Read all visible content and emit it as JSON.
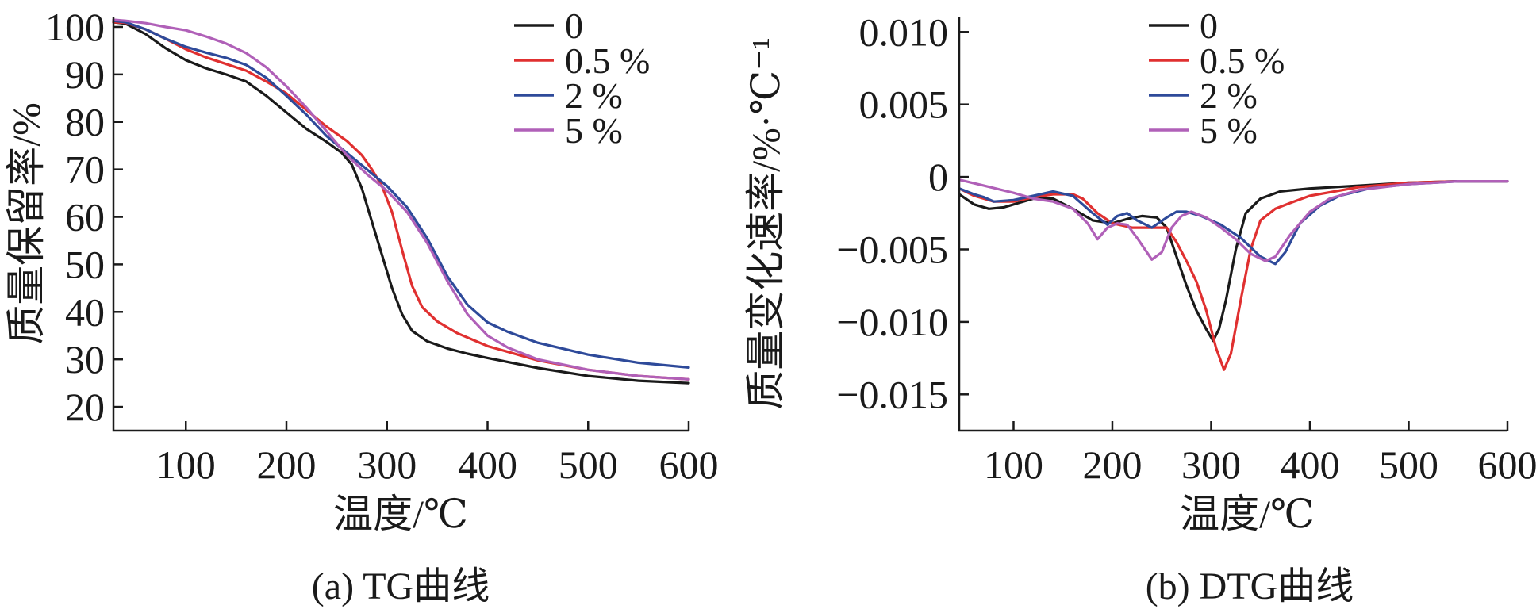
{
  "chart_data": [
    {
      "type": "line",
      "panel": "a",
      "caption": "(a) TG曲线",
      "xlabel": "温度/℃",
      "ylabel": "质量保留率/%",
      "xlim": [
        28,
        600
      ],
      "ylim": [
        15,
        102
      ],
      "xticks": [
        100,
        200,
        300,
        400,
        500,
        600
      ],
      "xtick_labels": [
        "100",
        "200",
        "300",
        "400",
        "500",
        "600"
      ],
      "yticks": [
        20,
        30,
        40,
        50,
        60,
        70,
        80,
        90,
        100
      ],
      "ytick_labels": [
        "20",
        "30",
        "40",
        "50",
        "60",
        "70",
        "80",
        "90",
        "100"
      ],
      "legend": [
        "0",
        "0.5 %",
        "2 %",
        "5 %"
      ],
      "legend_position": "top-right",
      "series": [
        {
          "name": "0",
          "color": "#1a1a1a",
          "points": [
            [
              28,
              101
            ],
            [
              40,
              100.7
            ],
            [
              60,
              98.5
            ],
            [
              80,
              95.5
            ],
            [
              100,
              93
            ],
            [
              120,
              91.3
            ],
            [
              140,
              90
            ],
            [
              160,
              88.5
            ],
            [
              180,
              85.5
            ],
            [
              200,
              82
            ],
            [
              220,
              78.5
            ],
            [
              240,
              75.8
            ],
            [
              255,
              73.5
            ],
            [
              265,
              71
            ],
            [
              275,
              66
            ],
            [
              285,
              59
            ],
            [
              295,
              52
            ],
            [
              305,
              45
            ],
            [
              315,
              39.5
            ],
            [
              325,
              36
            ],
            [
              340,
              33.8
            ],
            [
              360,
              32.3
            ],
            [
              380,
              31.2
            ],
            [
              400,
              30.3
            ],
            [
              450,
              28.2
            ],
            [
              500,
              26.5
            ],
            [
              550,
              25.5
            ],
            [
              600,
              25
            ]
          ]
        },
        {
          "name": "0.5 %",
          "color": "#e03030",
          "points": [
            [
              28,
              101
            ],
            [
              40,
              100.9
            ],
            [
              60,
              99.5
            ],
            [
              80,
              97.5
            ],
            [
              100,
              95.3
            ],
            [
              120,
              93.6
            ],
            [
              140,
              92.2
            ],
            [
              160,
              90.8
            ],
            [
              180,
              88.5
            ],
            [
              200,
              86
            ],
            [
              220,
              82.5
            ],
            [
              240,
              79
            ],
            [
              260,
              76
            ],
            [
              275,
              73
            ],
            [
              285,
              70
            ],
            [
              295,
              66.5
            ],
            [
              305,
              61
            ],
            [
              315,
              53
            ],
            [
              325,
              45.5
            ],
            [
              335,
              41
            ],
            [
              350,
              38
            ],
            [
              370,
              35.5
            ],
            [
              400,
              32.8
            ],
            [
              450,
              29.8
            ],
            [
              500,
              27.8
            ],
            [
              550,
              26.5
            ],
            [
              600,
              25.8
            ]
          ]
        },
        {
          "name": "2 %",
          "color": "#2e4a9a",
          "points": [
            [
              28,
              101.3
            ],
            [
              40,
              101
            ],
            [
              60,
              99.5
            ],
            [
              80,
              97.5
            ],
            [
              100,
              95.8
            ],
            [
              120,
              94.6
            ],
            [
              140,
              93.5
            ],
            [
              160,
              92
            ],
            [
              180,
              89.3
            ],
            [
              200,
              85.5
            ],
            [
              220,
              81.5
            ],
            [
              240,
              77
            ],
            [
              260,
              73.5
            ],
            [
              280,
              70
            ],
            [
              300,
              66.5
            ],
            [
              320,
              62
            ],
            [
              340,
              55.5
            ],
            [
              360,
              47.5
            ],
            [
              380,
              41.5
            ],
            [
              400,
              37.8
            ],
            [
              420,
              35.8
            ],
            [
              450,
              33.5
            ],
            [
              500,
              31
            ],
            [
              550,
              29.3
            ],
            [
              600,
              28.3
            ]
          ]
        },
        {
          "name": "5 %",
          "color": "#b060b8",
          "points": [
            [
              28,
              101.5
            ],
            [
              40,
              101.3
            ],
            [
              60,
              100.8
            ],
            [
              80,
              100
            ],
            [
              100,
              99.3
            ],
            [
              120,
              98
            ],
            [
              140,
              96.5
            ],
            [
              160,
              94.5
            ],
            [
              180,
              91.5
            ],
            [
              200,
              87.5
            ],
            [
              220,
              83
            ],
            [
              240,
              78
            ],
            [
              260,
              73
            ],
            [
              280,
              69
            ],
            [
              300,
              65.5
            ],
            [
              320,
              61
            ],
            [
              340,
              54.5
            ],
            [
              360,
              46.5
            ],
            [
              380,
              39.5
            ],
            [
              400,
              35
            ],
            [
              420,
              32.5
            ],
            [
              450,
              30
            ],
            [
              500,
              27.8
            ],
            [
              550,
              26.5
            ],
            [
              600,
              25.8
            ]
          ]
        }
      ]
    },
    {
      "type": "line",
      "panel": "b",
      "caption": "(b) DTG曲线",
      "xlabel": "温度/℃",
      "ylabel": "质量变化速率/%·℃⁻¹",
      "xlim": [
        45,
        600
      ],
      "ylim": [
        -0.0175,
        0.011
      ],
      "xticks": [
        100,
        200,
        300,
        400,
        500,
        600
      ],
      "xtick_labels": [
        "100",
        "200",
        "300",
        "400",
        "500",
        "600"
      ],
      "yticks": [
        0.01,
        0.005,
        0,
        -0.005,
        -0.01,
        -0.015
      ],
      "ytick_labels": [
        "0.010",
        "0.005",
        "0",
        "−0.005",
        "−0.010",
        "−0.015"
      ],
      "legend": [
        "0",
        "0.5 %",
        "2 %",
        "5 %"
      ],
      "legend_position": "top-center",
      "series": [
        {
          "name": "0",
          "color": "#1a1a1a",
          "points": [
            [
              45,
              -0.0012
            ],
            [
              60,
              -0.0019
            ],
            [
              75,
              -0.0022
            ],
            [
              90,
              -0.0021
            ],
            [
              105,
              -0.0018
            ],
            [
              120,
              -0.0015
            ],
            [
              140,
              -0.0015
            ],
            [
              160,
              -0.0022
            ],
            [
              180,
              -0.003
            ],
            [
              200,
              -0.0032
            ],
            [
              215,
              -0.0029
            ],
            [
              230,
              -0.0027
            ],
            [
              245,
              -0.0028
            ],
            [
              255,
              -0.0035
            ],
            [
              265,
              -0.0055
            ],
            [
              275,
              -0.0075
            ],
            [
              285,
              -0.0092
            ],
            [
              295,
              -0.0105
            ],
            [
              302,
              -0.0113
            ],
            [
              308,
              -0.0105
            ],
            [
              315,
              -0.0085
            ],
            [
              325,
              -0.005
            ],
            [
              335,
              -0.0025
            ],
            [
              350,
              -0.0015
            ],
            [
              370,
              -0.001
            ],
            [
              400,
              -0.0008
            ],
            [
              450,
              -0.0006
            ],
            [
              500,
              -0.0004
            ],
            [
              550,
              -0.0003
            ],
            [
              600,
              -0.0003
            ]
          ]
        },
        {
          "name": "0.5 %",
          "color": "#e03030",
          "points": [
            [
              45,
              -0.0008
            ],
            [
              60,
              -0.0013
            ],
            [
              80,
              -0.0017
            ],
            [
              100,
              -0.0017
            ],
            [
              120,
              -0.0014
            ],
            [
              140,
              -0.0012
            ],
            [
              160,
              -0.0012
            ],
            [
              170,
              -0.0015
            ],
            [
              185,
              -0.0025
            ],
            [
              200,
              -0.0032
            ],
            [
              220,
              -0.0035
            ],
            [
              240,
              -0.0035
            ],
            [
              255,
              -0.0035
            ],
            [
              265,
              -0.0045
            ],
            [
              275,
              -0.0058
            ],
            [
              285,
              -0.0072
            ],
            [
              295,
              -0.0092
            ],
            [
              305,
              -0.0118
            ],
            [
              313,
              -0.0133
            ],
            [
              320,
              -0.0122
            ],
            [
              330,
              -0.0085
            ],
            [
              340,
              -0.005
            ],
            [
              350,
              -0.003
            ],
            [
              365,
              -0.0022
            ],
            [
              380,
              -0.0018
            ],
            [
              400,
              -0.0013
            ],
            [
              450,
              -0.0007
            ],
            [
              500,
              -0.0004
            ],
            [
              550,
              -0.0003
            ],
            [
              600,
              -0.0003
            ]
          ]
        },
        {
          "name": "2 %",
          "color": "#2e4a9a",
          "points": [
            [
              45,
              -0.0008
            ],
            [
              60,
              -0.0012
            ],
            [
              70,
              -0.0014
            ],
            [
              80,
              -0.0017
            ],
            [
              100,
              -0.0016
            ],
            [
              120,
              -0.0013
            ],
            [
              140,
              -0.001
            ],
            [
              160,
              -0.0013
            ],
            [
              180,
              -0.0025
            ],
            [
              195,
              -0.0033
            ],
            [
              205,
              -0.0027
            ],
            [
              215,
              -0.0025
            ],
            [
              225,
              -0.003
            ],
            [
              240,
              -0.0035
            ],
            [
              255,
              -0.0028
            ],
            [
              265,
              -0.0024
            ],
            [
              275,
              -0.0024
            ],
            [
              290,
              -0.0027
            ],
            [
              310,
              -0.0033
            ],
            [
              330,
              -0.0042
            ],
            [
              350,
              -0.0055
            ],
            [
              365,
              -0.006
            ],
            [
              375,
              -0.0052
            ],
            [
              390,
              -0.0032
            ],
            [
              410,
              -0.002
            ],
            [
              430,
              -0.0013
            ],
            [
              460,
              -0.0008
            ],
            [
              500,
              -0.0005
            ],
            [
              550,
              -0.0003
            ],
            [
              600,
              -0.0003
            ]
          ]
        },
        {
          "name": "5 %",
          "color": "#b060b8",
          "points": [
            [
              45,
              -0.0002
            ],
            [
              70,
              -0.0006
            ],
            [
              100,
              -0.0011
            ],
            [
              120,
              -0.0015
            ],
            [
              140,
              -0.0017
            ],
            [
              160,
              -0.0022
            ],
            [
              175,
              -0.0032
            ],
            [
              185,
              -0.0043
            ],
            [
              195,
              -0.0035
            ],
            [
              205,
              -0.0032
            ],
            [
              215,
              -0.0033
            ],
            [
              225,
              -0.0042
            ],
            [
              240,
              -0.0057
            ],
            [
              250,
              -0.0052
            ],
            [
              260,
              -0.0035
            ],
            [
              270,
              -0.0027
            ],
            [
              280,
              -0.0024
            ],
            [
              295,
              -0.0028
            ],
            [
              310,
              -0.0035
            ],
            [
              325,
              -0.0043
            ],
            [
              340,
              -0.0053
            ],
            [
              355,
              -0.0058
            ],
            [
              365,
              -0.0055
            ],
            [
              380,
              -0.004
            ],
            [
              400,
              -0.0024
            ],
            [
              420,
              -0.0015
            ],
            [
              450,
              -0.0009
            ],
            [
              500,
              -0.0005
            ],
            [
              550,
              -0.0003
            ],
            [
              600,
              -0.0003
            ]
          ]
        }
      ]
    }
  ]
}
